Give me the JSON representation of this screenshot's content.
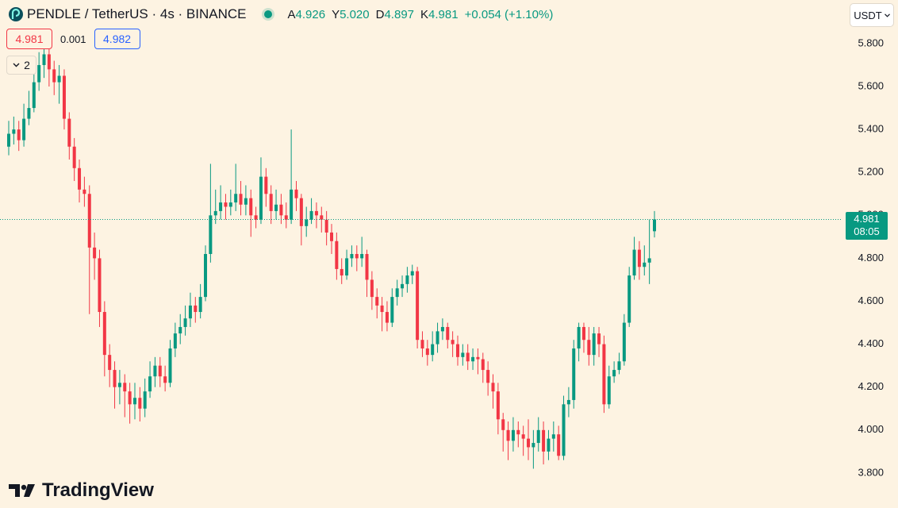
{
  "header": {
    "symbol": "PENDLE / TetherUS · 4s · BINANCE",
    "ohlc": [
      {
        "key": "A",
        "value": "4.926"
      },
      {
        "key": "Y",
        "value": "5.020"
      },
      {
        "key": "D",
        "value": "4.897"
      },
      {
        "key": "K",
        "value": "4.981"
      }
    ],
    "change": "+0.054 (+1.10%)"
  },
  "order": {
    "sell": "4.981",
    "spread": "0.001",
    "buy": "4.982"
  },
  "indicators": "2",
  "currency": "USDT",
  "price_tag": {
    "price": "4.981",
    "countdown": "08:05"
  },
  "brand": "TradingView",
  "chart_data": {
    "type": "candlestick",
    "up_color": "#089981",
    "down_color": "#f23645",
    "ylim": [
      3.637,
      6.003
    ],
    "yticks": [
      {
        "value": 3.8,
        "label": "3.800"
      },
      {
        "value": 4.0,
        "label": "4.000"
      },
      {
        "value": 4.2,
        "label": "4.200"
      },
      {
        "value": 4.4,
        "label": "4.400"
      },
      {
        "value": 4.6,
        "label": "4.600"
      },
      {
        "value": 4.8,
        "label": "4.800"
      },
      {
        "value": 5.0,
        "label": "5.000"
      },
      {
        "value": 5.2,
        "label": "5.200"
      },
      {
        "value": 5.4,
        "label": "5.400"
      },
      {
        "value": 5.6,
        "label": "5.600"
      },
      {
        "value": 5.8,
        "label": "5.800"
      }
    ],
    "open": [
      5.32,
      5.38,
      5.4,
      5.35,
      5.45,
      5.5,
      5.62,
      5.7,
      5.75,
      5.68,
      5.62,
      5.65,
      5.45,
      5.32,
      5.22,
      5.12,
      5.1,
      4.85,
      4.8,
      4.55,
      4.35,
      4.28,
      4.2,
      4.22,
      4.18,
      4.12,
      4.15,
      4.1,
      4.18,
      4.25,
      4.3,
      4.25,
      4.22,
      4.38,
      4.45,
      4.48,
      4.52,
      4.58,
      4.55,
      4.62,
      4.82,
      5.0,
      5.02,
      5.06,
      5.04,
      5.06,
      5.1,
      5.05,
      5.08,
      5.0,
      4.98,
      5.18,
      5.1,
      5.02,
      5.05,
      5.0,
      4.98,
      5.12,
      5.08,
      4.95,
      4.98,
      5.02,
      5.0,
      4.98,
      4.92,
      4.88,
      4.75,
      4.72,
      4.8,
      4.82,
      4.8,
      4.82,
      4.7,
      4.62,
      4.58,
      4.55,
      4.5,
      4.62,
      4.66,
      4.68,
      4.72,
      4.74,
      4.42,
      4.38,
      4.35,
      4.4,
      4.46,
      4.48,
      4.42,
      4.4,
      4.34,
      4.36,
      4.32,
      4.34,
      4.33,
      4.28,
      4.22,
      4.18,
      4.05,
      4.0,
      3.95,
      4.0,
      3.98,
      3.96,
      3.92,
      3.94,
      4.0,
      3.9,
      3.96,
      3.98,
      3.88,
      4.12,
      4.14,
      4.38,
      4.48,
      4.42,
      4.35,
      4.45,
      4.4,
      4.12,
      4.25,
      4.28,
      4.32,
      4.5,
      4.72,
      4.84,
      4.76,
      4.78,
      4.926
    ],
    "high": [
      5.44,
      5.46,
      5.44,
      5.52,
      5.58,
      5.68,
      5.76,
      5.78,
      5.79,
      5.72,
      5.7,
      5.68,
      5.48,
      5.36,
      5.26,
      5.18,
      5.14,
      4.92,
      4.84,
      4.6,
      4.4,
      4.32,
      4.28,
      4.26,
      4.22,
      4.22,
      4.2,
      4.24,
      4.32,
      4.34,
      4.34,
      4.3,
      4.42,
      4.5,
      4.54,
      4.58,
      4.64,
      4.62,
      4.68,
      4.86,
      5.24,
      5.12,
      5.14,
      5.1,
      5.12,
      5.24,
      5.16,
      5.14,
      5.12,
      5.04,
      5.27,
      5.22,
      5.14,
      5.12,
      5.1,
      5.06,
      5.4,
      5.16,
      5.1,
      5.04,
      5.08,
      5.06,
      5.04,
      5.02,
      4.96,
      4.92,
      4.8,
      4.84,
      4.86,
      4.86,
      4.9,
      4.84,
      4.74,
      4.66,
      4.62,
      4.6,
      4.66,
      4.7,
      4.72,
      4.76,
      4.77,
      4.76,
      4.46,
      4.42,
      4.46,
      4.5,
      4.52,
      4.5,
      4.46,
      4.44,
      4.4,
      4.4,
      4.38,
      4.38,
      4.36,
      4.32,
      4.26,
      4.22,
      4.08,
      4.04,
      4.06,
      4.04,
      4.02,
      4.05,
      4.0,
      4.06,
      4.04,
      4.0,
      4.04,
      4.02,
      4.16,
      4.2,
      4.42,
      4.5,
      4.5,
      4.48,
      4.48,
      4.48,
      4.44,
      4.3,
      4.32,
      4.36,
      4.54,
      4.76,
      4.9,
      4.88,
      4.86,
      4.98,
      5.02
    ],
    "low": [
      5.28,
      5.33,
      5.3,
      5.32,
      5.42,
      5.48,
      5.58,
      5.64,
      5.6,
      5.56,
      5.52,
      5.4,
      5.26,
      5.16,
      5.06,
      5.04,
      4.54,
      4.7,
      4.48,
      4.25,
      4.2,
      4.1,
      4.12,
      4.06,
      4.03,
      4.05,
      4.04,
      4.06,
      4.15,
      4.2,
      4.2,
      4.18,
      4.2,
      4.34,
      4.4,
      4.44,
      4.48,
      4.5,
      4.52,
      4.6,
      4.78,
      4.96,
      4.98,
      4.98,
      5.0,
      5.02,
      5.0,
      5.0,
      4.9,
      4.94,
      4.96,
      5.04,
      4.96,
      4.98,
      4.96,
      4.94,
      4.96,
      5.02,
      4.86,
      4.9,
      4.96,
      4.94,
      4.92,
      4.86,
      4.82,
      4.7,
      4.68,
      4.7,
      4.76,
      4.74,
      4.76,
      4.62,
      4.56,
      4.52,
      4.46,
      4.46,
      4.48,
      4.58,
      4.62,
      4.64,
      4.68,
      4.38,
      4.34,
      4.3,
      4.32,
      4.36,
      4.42,
      4.38,
      4.34,
      4.3,
      4.3,
      4.28,
      4.28,
      4.26,
      4.22,
      4.16,
      4.1,
      3.98,
      3.9,
      3.86,
      3.9,
      3.92,
      3.88,
      3.86,
      3.82,
      3.9,
      3.84,
      3.86,
      3.9,
      3.86,
      3.86,
      4.06,
      4.1,
      4.32,
      4.36,
      4.3,
      4.3,
      4.34,
      4.08,
      4.1,
      4.22,
      4.26,
      4.3,
      4.48,
      4.7,
      4.7,
      4.72,
      4.68,
      4.897
    ],
    "close": [
      5.38,
      5.4,
      5.35,
      5.45,
      5.5,
      5.62,
      5.7,
      5.75,
      5.68,
      5.62,
      5.65,
      5.45,
      5.32,
      5.22,
      5.12,
      5.1,
      4.85,
      4.8,
      4.55,
      4.35,
      4.28,
      4.2,
      4.22,
      4.18,
      4.12,
      4.15,
      4.1,
      4.18,
      4.25,
      4.3,
      4.25,
      4.22,
      4.38,
      4.45,
      4.48,
      4.52,
      4.58,
      4.55,
      4.62,
      4.82,
      5.0,
      5.02,
      5.06,
      5.04,
      5.06,
      5.1,
      5.05,
      5.08,
      5.0,
      4.98,
      5.18,
      5.1,
      5.02,
      5.05,
      5.0,
      4.98,
      5.12,
      5.08,
      4.95,
      4.98,
      5.02,
      5.0,
      4.98,
      4.92,
      4.88,
      4.75,
      4.72,
      4.8,
      4.82,
      4.8,
      4.82,
      4.7,
      4.62,
      4.58,
      4.55,
      4.5,
      4.62,
      4.66,
      4.68,
      4.72,
      4.74,
      4.42,
      4.38,
      4.35,
      4.4,
      4.46,
      4.48,
      4.42,
      4.4,
      4.34,
      4.36,
      4.32,
      4.34,
      4.33,
      4.28,
      4.22,
      4.18,
      4.05,
      4.0,
      3.95,
      4.0,
      3.98,
      3.96,
      3.92,
      3.94,
      4.0,
      3.9,
      3.96,
      3.98,
      3.88,
      4.12,
      4.14,
      4.38,
      4.48,
      4.42,
      4.35,
      4.45,
      4.4,
      4.12,
      4.25,
      4.28,
      4.32,
      4.5,
      4.72,
      4.84,
      4.76,
      4.78,
      4.8,
      4.981
    ]
  }
}
